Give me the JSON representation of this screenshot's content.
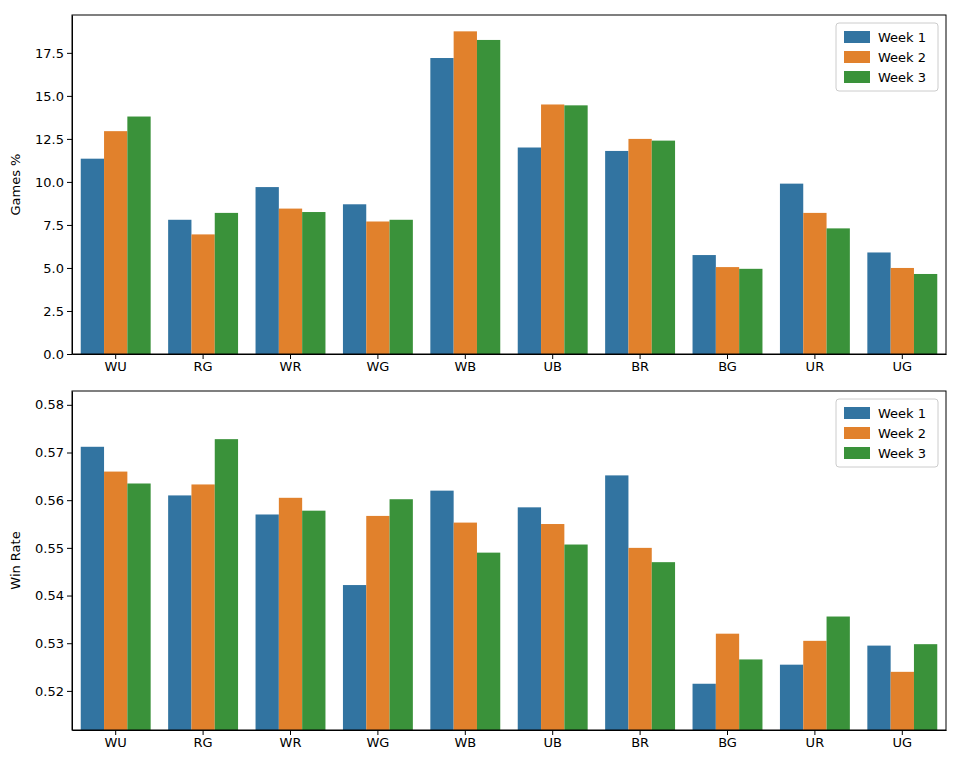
{
  "chart_data": [
    {
      "type": "bar",
      "y_label": "Games %",
      "categories": [
        "WU",
        "RG",
        "WR",
        "WG",
        "WB",
        "UB",
        "BR",
        "BG",
        "UR",
        "UG"
      ],
      "series": [
        {
          "name": "Week 1",
          "color": "#3274a1",
          "values": [
            11.35,
            7.8,
            9.7,
            8.7,
            17.2,
            12.0,
            11.8,
            5.75,
            9.9,
            5.9
          ]
        },
        {
          "name": "Week 2",
          "color": "#e1812c",
          "values": [
            12.95,
            6.95,
            8.45,
            7.7,
            18.75,
            14.5,
            12.5,
            5.05,
            8.2,
            5.0
          ]
        },
        {
          "name": "Week 3",
          "color": "#3a923a",
          "values": [
            13.8,
            8.2,
            8.25,
            7.8,
            18.25,
            14.45,
            12.4,
            4.95,
            7.3,
            4.65
          ]
        }
      ],
      "ylim": [
        0,
        19.7
      ],
      "yticks": [
        {
          "value": 0,
          "label": "0.0"
        },
        {
          "value": 2.5,
          "label": "2.5"
        },
        {
          "value": 5,
          "label": "5.0"
        },
        {
          "value": 7.5,
          "label": "7.5"
        },
        {
          "value": 10,
          "label": "10.0"
        },
        {
          "value": 12.5,
          "label": "12.5"
        },
        {
          "value": 15,
          "label": "15.0"
        },
        {
          "value": 17.5,
          "label": "17.5"
        }
      ],
      "legend": "upper right",
      "grid": false
    },
    {
      "type": "bar",
      "y_label": "Win Rate",
      "categories": [
        "WU",
        "RG",
        "WR",
        "WG",
        "WB",
        "UB",
        "BR",
        "BG",
        "UR",
        "UG"
      ],
      "series": [
        {
          "name": "Week 1",
          "color": "#3274a1",
          "values": [
            0.5712,
            0.561,
            0.557,
            0.5422,
            0.562,
            0.5585,
            0.5652,
            0.5215,
            0.5255,
            0.5295
          ]
        },
        {
          "name": "Week 2",
          "color": "#e1812c",
          "values": [
            0.566,
            0.5633,
            0.5605,
            0.5567,
            0.5553,
            0.555,
            0.55,
            0.532,
            0.5305,
            0.524
          ]
        },
        {
          "name": "Week 3",
          "color": "#3a923a",
          "values": [
            0.5635,
            0.5728,
            0.5578,
            0.5602,
            0.549,
            0.5507,
            0.547,
            0.5266,
            0.5356,
            0.5298
          ]
        }
      ],
      "ylim": [
        0.5118,
        0.5829
      ],
      "yticks": [
        0.52,
        0.53,
        0.54,
        0.55,
        0.56,
        0.57,
        0.58
      ],
      "legend": "upper right",
      "grid": false
    }
  ]
}
